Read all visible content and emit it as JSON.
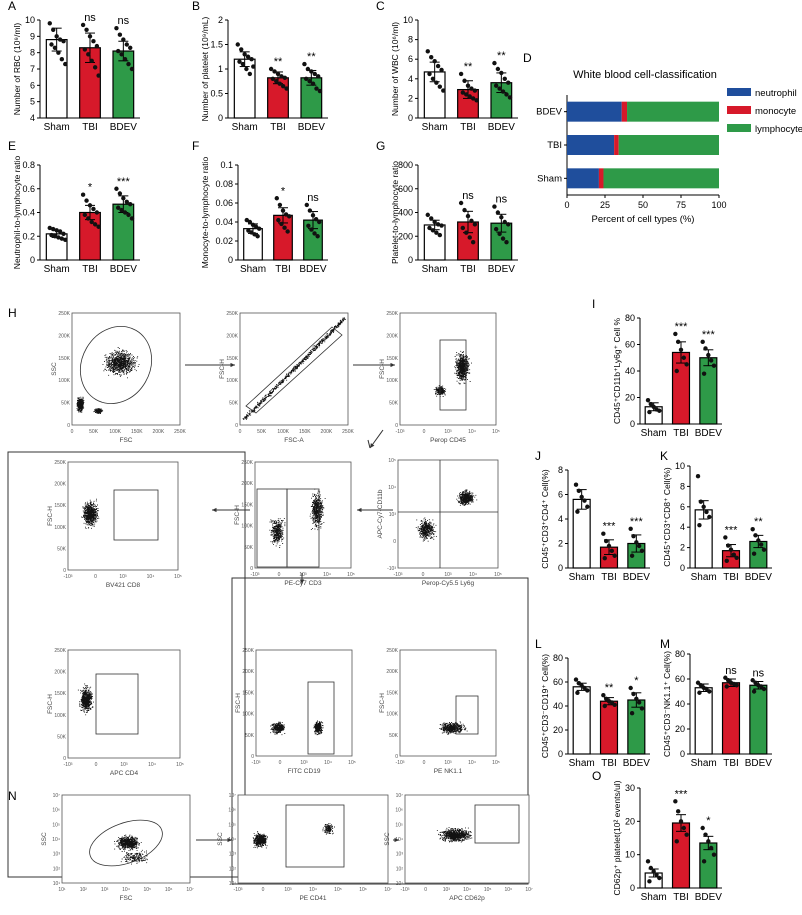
{
  "colors": {
    "sham": "#ffffff",
    "tbi": "#d7192a",
    "bdev": "#2e9a48",
    "neutrophil": "#1f4e9c",
    "monocyte": "#d7192a",
    "lymphocyte": "#2e9a48"
  },
  "chart_data": [
    {
      "id": "A",
      "type": "bar",
      "panel": "A",
      "categories": [
        "Sham",
        "TBI",
        "BDEV"
      ],
      "values": [
        8.8,
        8.3,
        8.1
      ],
      "errors": [
        0.7,
        0.9,
        0.6
      ],
      "sig": [
        "",
        "ns",
        "ns"
      ],
      "ylabel": "Number of RBC (10⁹/ml)",
      "ylim": [
        4,
        10
      ],
      "yticks": [
        4,
        5,
        6,
        7,
        8,
        9,
        10
      ],
      "points": [
        [
          9.8,
          9.4,
          9.0,
          8.8,
          8.7,
          8.5,
          8.3,
          8.0,
          7.6,
          7.3
        ],
        [
          9.7,
          9.4,
          9.0,
          8.7,
          8.4,
          8.2,
          7.9,
          7.5,
          7.1,
          6.6
        ],
        [
          9.5,
          9.1,
          8.8,
          8.5,
          8.3,
          8.1,
          7.9,
          7.6,
          7.3,
          7.0
        ]
      ]
    },
    {
      "id": "B",
      "type": "bar",
      "panel": "B",
      "categories": [
        "Sham",
        "TBI",
        "BDEV"
      ],
      "values": [
        1.2,
        0.82,
        0.82
      ],
      "errors": [
        0.15,
        0.12,
        0.15
      ],
      "sig": [
        "",
        "**",
        "**"
      ],
      "ylabel": "Number of platelet (10⁹/mL)",
      "ylim": [
        0,
        2.0
      ],
      "yticks": [
        0,
        0.5,
        1.0,
        1.5,
        2.0
      ],
      "points": [
        [
          1.5,
          1.4,
          1.3,
          1.25,
          1.2,
          1.15,
          1.1,
          1.0,
          0.9,
          1.05
        ],
        [
          1.0,
          0.95,
          0.9,
          0.85,
          0.82,
          0.8,
          0.75,
          0.7,
          0.65,
          0.6
        ],
        [
          1.1,
          1.0,
          0.95,
          0.9,
          0.85,
          0.8,
          0.75,
          0.7,
          0.6,
          0.55
        ]
      ]
    },
    {
      "id": "C",
      "type": "bar",
      "panel": "C",
      "categories": [
        "Sham",
        "TBI",
        "BDEV"
      ],
      "values": [
        4.7,
        2.9,
        3.6
      ],
      "errors": [
        1.0,
        0.9,
        1.0
      ],
      "sig": [
        "",
        "**",
        "**"
      ],
      "ylabel": "Number of WBC (10⁶/ml)",
      "ylim": [
        0,
        10
      ],
      "yticks": [
        0,
        2,
        4,
        6,
        8,
        10
      ],
      "points": [
        [
          6.8,
          6.2,
          5.8,
          5.3,
          4.9,
          4.5,
          4.0,
          3.6,
          3.2,
          2.8
        ],
        [
          4.5,
          3.8,
          3.3,
          3.0,
          2.8,
          2.6,
          2.4,
          2.2,
          2.0,
          1.8
        ],
        [
          5.6,
          5.0,
          4.6,
          4.0,
          3.6,
          3.3,
          3.0,
          2.7,
          2.4,
          2.1
        ]
      ]
    },
    {
      "id": "D",
      "type": "bar",
      "panel": "D",
      "orientation": "horizontal-stacked",
      "title": "White blood cell-classification",
      "categories": [
        "BDEV",
        "TBI",
        "Sham"
      ],
      "xlabel": "Percent of cell types (%)",
      "xlim": [
        0,
        100
      ],
      "xticks": [
        0,
        25,
        50,
        75,
        100
      ],
      "series": [
        {
          "name": "neutrophil",
          "values": [
            36,
            31,
            21
          ]
        },
        {
          "name": "monocyte",
          "values": [
            3.5,
            3,
            3
          ]
        },
        {
          "name": "lymphocyte",
          "values": [
            60.5,
            66,
            76
          ]
        }
      ]
    },
    {
      "id": "E",
      "type": "bar",
      "panel": "E",
      "categories": [
        "Sham",
        "TBI",
        "BDEV"
      ],
      "values": [
        0.22,
        0.4,
        0.47
      ],
      "errors": [
        0.03,
        0.06,
        0.07
      ],
      "sig": [
        "",
        "*",
        "***"
      ],
      "ylabel": "Neutrophil-to-lymphocyte ratio",
      "ylim": [
        0,
        0.8
      ],
      "yticks": [
        0,
        0.2,
        0.4,
        0.6,
        0.8
      ],
      "points": [
        [
          0.27,
          0.26,
          0.25,
          0.24,
          0.22,
          0.21,
          0.2,
          0.19,
          0.18,
          0.17
        ],
        [
          0.55,
          0.5,
          0.46,
          0.43,
          0.4,
          0.38,
          0.35,
          0.32,
          0.3,
          0.28
        ],
        [
          0.6,
          0.56,
          0.52,
          0.49,
          0.47,
          0.44,
          0.42,
          0.4,
          0.38,
          0.35
        ]
      ]
    },
    {
      "id": "F",
      "type": "bar",
      "panel": "F",
      "categories": [
        "Sham",
        "TBI",
        "BDEV"
      ],
      "values": [
        0.033,
        0.047,
        0.042
      ],
      "errors": [
        0.005,
        0.008,
        0.009
      ],
      "sig": [
        "",
        "*",
        "ns"
      ],
      "ylabel": "Monocyte-to-lymphocyte ratio",
      "ylim": [
        0,
        0.1
      ],
      "yticks": [
        0,
        0.02,
        0.04,
        0.06,
        0.08,
        0.1
      ],
      "points": [
        [
          0.042,
          0.04,
          0.037,
          0.035,
          0.033,
          0.031,
          0.029,
          0.027,
          0.025
        ],
        [
          0.065,
          0.058,
          0.052,
          0.048,
          0.046,
          0.042,
          0.038,
          0.034,
          0.03
        ],
        [
          0.058,
          0.052,
          0.047,
          0.043,
          0.04,
          0.036,
          0.032,
          0.028,
          0.025
        ]
      ]
    },
    {
      "id": "G",
      "type": "bar",
      "panel": "G",
      "categories": [
        "Sham",
        "TBI",
        "BDEV"
      ],
      "values": [
        295,
        320,
        310
      ],
      "errors": [
        40,
        90,
        75
      ],
      "sig": [
        "",
        "ns",
        "ns"
      ],
      "ylabel": "Platelet-to-lymphocyte ratio",
      "ylim": [
        0,
        800
      ],
      "yticks": [
        0,
        200,
        400,
        600,
        800
      ],
      "points": [
        [
          380,
          350,
          320,
          300,
          290,
          270,
          250,
          230,
          210
        ],
        [
          480,
          420,
          370,
          330,
          300,
          270,
          230,
          190,
          150
        ],
        [
          450,
          400,
          360,
          320,
          300,
          260,
          220,
          180,
          150
        ]
      ]
    },
    {
      "id": "I",
      "type": "bar",
      "panel": "I",
      "categories": [
        "Sham",
        "TBI",
        "BDEV"
      ],
      "values": [
        13,
        54,
        50
      ],
      "errors": [
        3,
        8,
        6
      ],
      "sig": [
        "",
        "***",
        "***"
      ],
      "ylabel": "CD45⁺CD11b⁺Ly6g⁺ Cell %",
      "ylim": [
        0,
        80
      ],
      "yticks": [
        0,
        20,
        40,
        60,
        80
      ],
      "points": [
        [
          18,
          15,
          13,
          11,
          10,
          9
        ],
        [
          68,
          62,
          56,
          50,
          45,
          40
        ],
        [
          62,
          57,
          52,
          48,
          44,
          38
        ]
      ]
    },
    {
      "id": "J",
      "type": "bar",
      "panel": "J",
      "categories": [
        "Sham",
        "TBI",
        "BDEV"
      ],
      "values": [
        5.6,
        1.7,
        2.0
      ],
      "errors": [
        0.8,
        0.6,
        0.7
      ],
      "sig": [
        "",
        "***",
        "***"
      ],
      "ylabel": "CD45⁺CD3⁺CD4⁺ Cell(%)",
      "ylim": [
        0,
        8
      ],
      "yticks": [
        0,
        2,
        4,
        6,
        8
      ],
      "points": [
        [
          6.8,
          6.3,
          5.8,
          5.5,
          5.0,
          4.6
        ],
        [
          2.8,
          2.2,
          1.8,
          1.4,
          1.0,
          0.8
        ],
        [
          3.2,
          2.6,
          2.1,
          1.8,
          1.4,
          1.0
        ]
      ]
    },
    {
      "id": "K",
      "type": "bar",
      "panel": "K",
      "categories": [
        "Sham",
        "TBI",
        "BDEV"
      ],
      "values": [
        5.7,
        1.7,
        2.6
      ],
      "errors": [
        0.9,
        0.6,
        0.6
      ],
      "sig": [
        "",
        "***",
        "**"
      ],
      "ylabel": "CD45⁺CD3⁺CD8⁺ Cell(%)",
      "ylim": [
        0,
        10
      ],
      "yticks": [
        0,
        2,
        4,
        6,
        8,
        10
      ],
      "points": [
        [
          9.0,
          6.5,
          6.0,
          5.5,
          5.0,
          4.2
        ],
        [
          3.0,
          2.2,
          1.8,
          1.3,
          1.0,
          0.7
        ],
        [
          3.8,
          3.2,
          2.7,
          2.3,
          1.8,
          1.4
        ]
      ]
    },
    {
      "id": "L",
      "type": "bar",
      "panel": "L",
      "categories": [
        "Sham",
        "TBI",
        "BDEV"
      ],
      "values": [
        56,
        44,
        45
      ],
      "errors": [
        3,
        3,
        6
      ],
      "sig": [
        "",
        "**",
        "*"
      ],
      "ylabel": "CD45⁺CD3⁻CD19⁺ Cell(%)",
      "ylim": [
        0,
        80
      ],
      "yticks": [
        0,
        20,
        40,
        60,
        80
      ],
      "points": [
        [
          62,
          59,
          57,
          55,
          53,
          51
        ],
        [
          49,
          46,
          44,
          43,
          41,
          40
        ],
        [
          55,
          50,
          46,
          43,
          38,
          34
        ]
      ]
    },
    {
      "id": "M",
      "type": "bar",
      "panel": "M",
      "categories": [
        "Sham",
        "TBI",
        "BDEV"
      ],
      "values": [
        53,
        57,
        55
      ],
      "errors": [
        3,
        3,
        3
      ],
      "sig": [
        "",
        "ns",
        "ns"
      ],
      "ylabel": "CD45⁺CD3⁻NK1.1⁺ Cell(%)",
      "ylim": [
        0,
        80
      ],
      "yticks": [
        0,
        20,
        40,
        60,
        80
      ],
      "points": [
        [
          57,
          55,
          53,
          52,
          50,
          49
        ],
        [
          61,
          59,
          57,
          56,
          55,
          54
        ],
        [
          59,
          57,
          55,
          54,
          52,
          50
        ]
      ]
    },
    {
      "id": "O",
      "type": "bar",
      "panel": "O",
      "categories": [
        "Sham",
        "TBI",
        "BDEV"
      ],
      "values": [
        4.5,
        19.5,
        13.5
      ],
      "errors": [
        1.2,
        2.5,
        2.0
      ],
      "sig": [
        "",
        "***",
        "*"
      ],
      "ylabel": "CD62p⁺ platelet(10² events/ul)",
      "ylim": [
        0,
        30
      ],
      "yticks": [
        0,
        10,
        20,
        30
      ],
      "points": [
        [
          8,
          6,
          5,
          4,
          3,
          2
        ],
        [
          26,
          23,
          20,
          18,
          16,
          14
        ],
        [
          18,
          16,
          14,
          12,
          10,
          8
        ]
      ]
    }
  ],
  "legend_d": {
    "neutrophil": "neutrophil",
    "monocyte": "monocyte",
    "lymphocyte": "lymphocyte"
  },
  "flow": {
    "h1": {
      "x": "FSC",
      "y": "SSC",
      "xt": [
        "0",
        "50K",
        "100K",
        "150K",
        "200K",
        "250K"
      ],
      "yt": [
        "0",
        "50K",
        "100K",
        "150K",
        "200K",
        "250K"
      ]
    },
    "h2": {
      "x": "FSC-A",
      "y": "FSC-H",
      "xt": [
        "0",
        "50K",
        "100K",
        "150K",
        "200K",
        "250K"
      ],
      "yt": [
        "0",
        "50K",
        "100K",
        "150K",
        "200K",
        "250K"
      ]
    },
    "h3": {
      "x": "Perop CD45",
      "y": "FSC-H",
      "xt": [
        "-10³",
        "0",
        "10³",
        "10⁴",
        "10⁵"
      ],
      "yt": [
        "0",
        "50K",
        "100K",
        "150K",
        "200K",
        "250K"
      ]
    },
    "h4": {
      "x": "Perop-Cy5.5 Ly6g",
      "y": "APC-Cy7-CD11b",
      "xt": [
        "-10³",
        "0",
        "10³",
        "10⁴",
        "10⁵"
      ],
      "yt": [
        "-10³",
        "0",
        "10³",
        "10⁴",
        "10⁵"
      ]
    },
    "h5": {
      "x": "PE-Cy7 CD3",
      "y": "FSC-H",
      "xt": [
        "-10³",
        "0",
        "10³",
        "10⁴",
        "10⁵"
      ],
      "yt": [
        "0",
        "50K",
        "100K",
        "150K",
        "200K",
        "250K"
      ]
    },
    "h6": {
      "x": "BV421 CD8",
      "y": "FSC-H",
      "xt": [
        "-10³",
        "0",
        "10³",
        "10⁴",
        "10⁵"
      ],
      "yt": [
        "0",
        "50K",
        "100K",
        "150K",
        "200K",
        "250K"
      ]
    },
    "h7": {
      "x": "APC CD4",
      "y": "FSC-H",
      "xt": [
        "-10³",
        "0",
        "10³",
        "10⁴",
        "10⁵"
      ],
      "yt": [
        "0",
        "50K",
        "100K",
        "150K",
        "200K",
        "250K"
      ]
    },
    "h8": {
      "x": "FITC CD19",
      "y": "FSC-H",
      "xt": [
        "-10³",
        "0",
        "10³",
        "10⁴",
        "10⁵"
      ],
      "yt": [
        "0",
        "50K",
        "100K",
        "150K",
        "200K",
        "250K"
      ]
    },
    "h9": {
      "x": "PE NK1.1",
      "y": "FSC-H",
      "xt": [
        "-10³",
        "0",
        "10³",
        "10⁴",
        "10⁵"
      ],
      "yt": [
        "0",
        "50K",
        "100K",
        "150K",
        "200K",
        "250K"
      ]
    },
    "n1": {
      "x": "FSC",
      "y": "SSC",
      "xt": [
        "10¹",
        "10²",
        "10³",
        "10⁴",
        "10⁵",
        "10⁶",
        "10⁷"
      ],
      "yt": [
        "10¹",
        "10²",
        "10³",
        "10⁴",
        "10⁵",
        "10⁶",
        "10⁷"
      ]
    },
    "n2": {
      "x": "PE CD41",
      "y": "SSC",
      "xt": [
        "-10³",
        "0",
        "10³",
        "10⁴",
        "10⁵",
        "10⁶",
        "10⁷"
      ],
      "yt": [
        "10¹",
        "10²",
        "10³",
        "10⁴",
        "10⁵",
        "10⁶",
        "10⁷"
      ]
    },
    "n3": {
      "x": "APC CD62p",
      "y": "SSC",
      "xt": [
        "-10³",
        "0",
        "10³",
        "10⁴",
        "10⁵",
        "10⁶",
        "10⁷"
      ],
      "yt": [
        "10¹",
        "10²",
        "10³",
        "10⁴",
        "10⁵",
        "10⁶",
        "10⁷"
      ]
    }
  }
}
